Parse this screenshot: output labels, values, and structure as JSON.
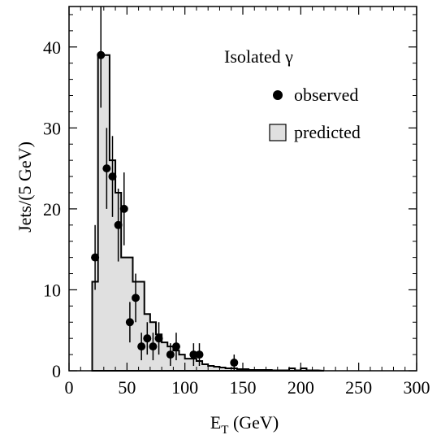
{
  "chart_data": {
    "type": "bar",
    "title": "Isolated γ",
    "xlabel_main": "E",
    "xlabel_sub": "T",
    "xlabel_unit": " (GeV)",
    "ylabel": "Jets/(5 GeV)",
    "xlim": [
      0,
      300
    ],
    "ylim": [
      0,
      45
    ],
    "xticks": [
      0,
      50,
      100,
      150,
      200,
      250,
      300
    ],
    "yticks": [
      0,
      10,
      20,
      30,
      40
    ],
    "grid": false,
    "legend_position": "top-right",
    "predicted": {
      "name": "predicted",
      "bin_edges": [
        20,
        25,
        30,
        35,
        40,
        45,
        50,
        55,
        60,
        65,
        70,
        75,
        80,
        85,
        90,
        95,
        100,
        105,
        110,
        115,
        120,
        125,
        130,
        135,
        140,
        145,
        150,
        155,
        160,
        165,
        170,
        175,
        180,
        185,
        190,
        195,
        200,
        205,
        210,
        215
      ],
      "values": [
        11,
        39,
        39,
        26,
        22,
        14,
        14,
        11,
        11,
        7,
        6,
        4.5,
        3.5,
        3,
        2.5,
        2,
        1.5,
        1.5,
        1.2,
        0.8,
        0.6,
        0.5,
        0.4,
        0.3,
        0.3,
        0.2,
        0.2,
        0.1,
        0.1,
        0.1,
        0.1,
        0.05,
        0.05,
        0.05,
        0.3,
        0.05,
        0.3,
        0.05,
        0.05
      ]
    },
    "observed": {
      "name": "observed",
      "points": [
        {
          "x": 22.5,
          "y": 14,
          "err": 4
        },
        {
          "x": 27.5,
          "y": 39,
          "err": 6.5
        },
        {
          "x": 32.5,
          "y": 25,
          "err": 5
        },
        {
          "x": 37.5,
          "y": 24,
          "err": 5
        },
        {
          "x": 42.5,
          "y": 18,
          "err": 4.5
        },
        {
          "x": 47.5,
          "y": 20,
          "err": 4.5
        },
        {
          "x": 52.5,
          "y": 6,
          "err": 2.5
        },
        {
          "x": 57.5,
          "y": 9,
          "err": 3
        },
        {
          "x": 62.5,
          "y": 3,
          "err": 1.7
        },
        {
          "x": 67.5,
          "y": 4,
          "err": 2
        },
        {
          "x": 72.5,
          "y": 3,
          "err": 1.7
        },
        {
          "x": 77.5,
          "y": 4,
          "err": 2
        },
        {
          "x": 87.5,
          "y": 2,
          "err": 1.4
        },
        {
          "x": 92.5,
          "y": 3,
          "err": 1.7
        },
        {
          "x": 107.5,
          "y": 2,
          "err": 1.4
        },
        {
          "x": 112.5,
          "y": 2,
          "err": 1.4
        },
        {
          "x": 142.5,
          "y": 1,
          "err": 1
        }
      ]
    },
    "colors": {
      "fill": "#e0e0e0",
      "line": "#000000",
      "marker": "#000000"
    }
  }
}
